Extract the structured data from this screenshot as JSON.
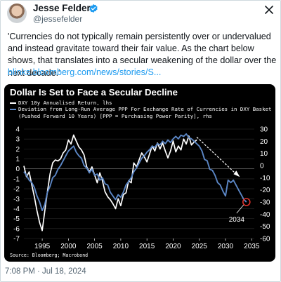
{
  "tweet": {
    "author_name": "Jesse Felder",
    "author_handle": "@jessefelder",
    "text": "'Currencies do not typically remain persistently over or undervalued and instead gravitate toward their fair value. As the chart below shows, that translates into a secular weakening of the dollar over the next decade.'",
    "link": "blinks.bloomberg.com/news/stories/S...",
    "timestamp": "7:08 PM · Jul 18, 2024"
  },
  "colors": {
    "link": "#1d9bf0",
    "verified": "#1d9bf0",
    "chart_bg": "#000000",
    "series_white": "#ffffff",
    "series_blue": "#5b86c5",
    "annotation_circle": "#e0312b"
  },
  "icons": {
    "verified": "verified-badge-icon",
    "close": "close-icon",
    "avatar": "avatar"
  },
  "chart_data": {
    "type": "line",
    "title": "Dollar Is Set to Face a Secular Decline",
    "legend": [
      "DXY 10y Annualised Return, lhs",
      "Deviation from Long-Run Average PPP For Exchange Rate of Currencies in DXY Basket",
      "(Pushed Forward 10 Years) [PPP = Purchasing Power Parity], rhs"
    ],
    "source": "Source: Bloomberg; Macrobond",
    "x_ticks": [
      1995,
      2000,
      2005,
      2010,
      2015,
      2020,
      2025,
      2030,
      2035
    ],
    "xlim": [
      1991.5,
      2035.5
    ],
    "y_left_ticks": [
      4,
      3,
      2,
      1,
      0,
      -1,
      -2,
      -3,
      -4,
      -5,
      -6,
      -7
    ],
    "ylim_left": [
      -7,
      4
    ],
    "y_right_ticks": [
      30,
      20,
      10,
      0,
      -10,
      -20,
      -30,
      -40,
      -50,
      -60
    ],
    "ylim_right": [
      -60,
      30
    ],
    "annotation_label": "2034",
    "annotation_point": {
      "x": 2034,
      "y": -30
    },
    "series": [
      {
        "name": "DXY 10y Annualised Return, lhs",
        "axis": "left",
        "x": [
          1991.5,
          1992,
          1992.5,
          1993,
          1993.5,
          1994,
          1994.5,
          1995,
          1995.5,
          1996,
          1996.5,
          1997,
          1997.5,
          1998,
          1998.5,
          1999,
          1999.5,
          2000,
          2000.5,
          2001,
          2001.5,
          2002,
          2002.5,
          2003,
          2003.5,
          2004,
          2004.5,
          2005,
          2005.5,
          2006,
          2006.5,
          2007,
          2007.5,
          2008,
          2008.5,
          2009,
          2009.5,
          2010,
          2010.5,
          2011,
          2011.5,
          2012,
          2012.5,
          2013,
          2013.5,
          2014,
          2014.5,
          2015,
          2015.5,
          2016,
          2016.5,
          2017,
          2017.5,
          2018,
          2018.5,
          2019,
          2019.5,
          2020,
          2020.5,
          2021,
          2021.5,
          2022,
          2022.5,
          2023,
          2023.5,
          2024,
          2024.5
        ],
        "y": [
          0.3,
          -0.8,
          -0.3,
          -1.6,
          -2.8,
          -4.2,
          -5.4,
          -6.2,
          -4.2,
          -2.3,
          -0.5,
          0.6,
          0.9,
          0.8,
          1.0,
          1.6,
          1.9,
          2.9,
          2.5,
          3.4,
          2.8,
          2.2,
          1.9,
          1.4,
          0.2,
          -0.3,
          0.2,
          -0.6,
          -1.4,
          -0.4,
          -1.2,
          -2.3,
          -2.8,
          -3.1,
          -3.5,
          -4.0,
          -3.0,
          -3.7,
          -2.6,
          -2.4,
          -1.2,
          -1.4,
          0.6,
          0.2,
          0.9,
          1.6,
          1.2,
          0.7,
          1.5,
          2.3,
          1.8,
          2.6,
          2.0,
          2.6,
          1.8,
          1.1,
          1.8,
          2.8,
          1.7,
          2.3,
          1.9,
          3.0,
          2.5,
          3.3,
          2.4,
          2.7,
          2.9
        ]
      },
      {
        "name": "Deviation from Long-Run Average PPP For Exchange Rate of Currencies in DXY Basket (Pushed Forward 10 Years) [PPP = Purchasing Power Parity], rhs",
        "axis": "right",
        "x": [
          1991.5,
          1992,
          1992.5,
          1993,
          1993.5,
          1994,
          1994.5,
          1995,
          1995.5,
          1996,
          1996.5,
          1997,
          1997.5,
          1998,
          1998.5,
          1999,
          1999.5,
          2000,
          2000.5,
          2001,
          2001.5,
          2002,
          2002.5,
          2003,
          2003.5,
          2004,
          2004.5,
          2005,
          2005.5,
          2006,
          2006.5,
          2007,
          2007.5,
          2008,
          2008.5,
          2009,
          2009.5,
          2010,
          2010.5,
          2011,
          2011.5,
          2012,
          2012.5,
          2013,
          2013.5,
          2014,
          2014.5,
          2015,
          2015.5,
          2016,
          2016.5,
          2017,
          2017.5,
          2018,
          2018.5,
          2019,
          2019.5,
          2020,
          2020.5,
          2021,
          2021.5,
          2022,
          2022.5,
          2023,
          2023.5,
          2024,
          2024.5,
          2025,
          2025.5,
          2026,
          2026.5,
          2027,
          2027.5,
          2028,
          2028.5,
          2029,
          2029.5,
          2030,
          2030.5,
          2031,
          2031.5,
          2032,
          2032.5,
          2033,
          2033.5,
          2034
        ],
        "y": [
          -5,
          -8,
          -12,
          -14,
          -18,
          -25,
          -30,
          -37,
          -32,
          -22,
          -17,
          -10,
          -8,
          -3,
          0,
          4,
          8,
          12,
          14,
          16,
          11,
          8,
          6,
          0,
          -2,
          -6,
          -3,
          -8,
          -7,
          -12,
          -10,
          -15,
          -16,
          -22,
          -25,
          -28,
          -24,
          -26,
          -22,
          -16,
          -13,
          -10,
          -5,
          -2,
          2,
          6,
          8,
          11,
          13,
          16,
          15,
          18,
          17,
          20,
          18,
          21,
          19,
          22,
          24,
          22,
          25,
          24,
          26,
          23,
          22,
          20,
          18,
          16,
          12,
          5,
          4,
          -3,
          -4,
          -8,
          -14,
          -16,
          -21,
          -25,
          -12,
          -14,
          -12,
          -16,
          -20,
          -24,
          -28,
          -30
        ]
      }
    ]
  }
}
